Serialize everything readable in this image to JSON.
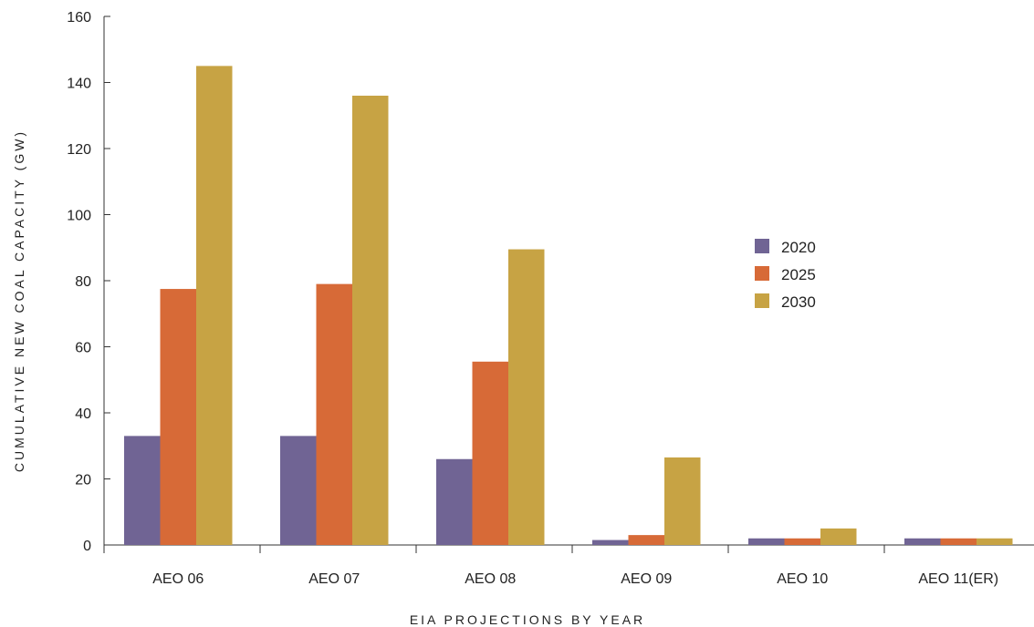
{
  "chart_data": {
    "type": "bar",
    "xlabel": "EIA PROJECTIONS BY YEAR",
    "ylabel": "CUMULATIVE NEW COAL CAPACITY (GW)",
    "ylim": [
      0,
      160
    ],
    "yticks": [
      0,
      20,
      40,
      60,
      80,
      100,
      120,
      140,
      160
    ],
    "grid": false,
    "legend_position": "center-right",
    "categories": [
      "AEO 06",
      "AEO 07",
      "AEO 08",
      "AEO 09",
      "AEO 10",
      "AEO 11(ER)"
    ],
    "series": [
      {
        "name": "2020",
        "color": "#706494",
        "values": [
          33,
          33,
          26,
          1.5,
          2,
          2
        ]
      },
      {
        "name": "2025",
        "color": "#d76a37",
        "values": [
          77.5,
          79,
          55.5,
          3,
          2,
          2
        ]
      },
      {
        "name": "2030",
        "color": "#c7a344",
        "values": [
          145,
          136,
          89.5,
          26.5,
          5,
          2
        ]
      }
    ]
  }
}
